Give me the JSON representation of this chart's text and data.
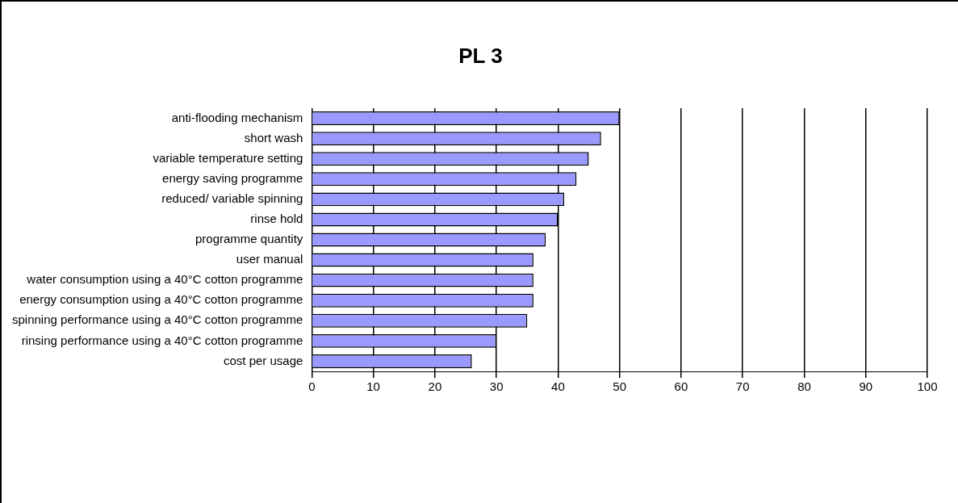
{
  "chart_data": {
    "type": "bar",
    "orientation": "horizontal",
    "title": "PL 3",
    "categories": [
      "anti-flooding mechanism",
      "short wash",
      "variable temperature setting",
      "energy saving programme",
      "reduced/ variable spinning",
      "rinse hold",
      "programme quantity",
      "user manual",
      "water consumption using a 40°C cotton programme",
      "energy consumption using a 40°C cotton programme",
      "spinning performance using a 40°C cotton programme",
      "rinsing performance using a 40°C cotton programme",
      "cost per usage"
    ],
    "values": [
      50,
      47,
      45,
      43,
      41,
      40,
      38,
      36,
      36,
      36,
      35,
      30,
      26
    ],
    "color": "#9999ff",
    "xlim": [
      0,
      100
    ],
    "xticks": [
      0,
      10,
      20,
      30,
      40,
      50,
      60,
      70,
      80,
      90,
      100
    ],
    "grid": "x",
    "legend": false
  }
}
